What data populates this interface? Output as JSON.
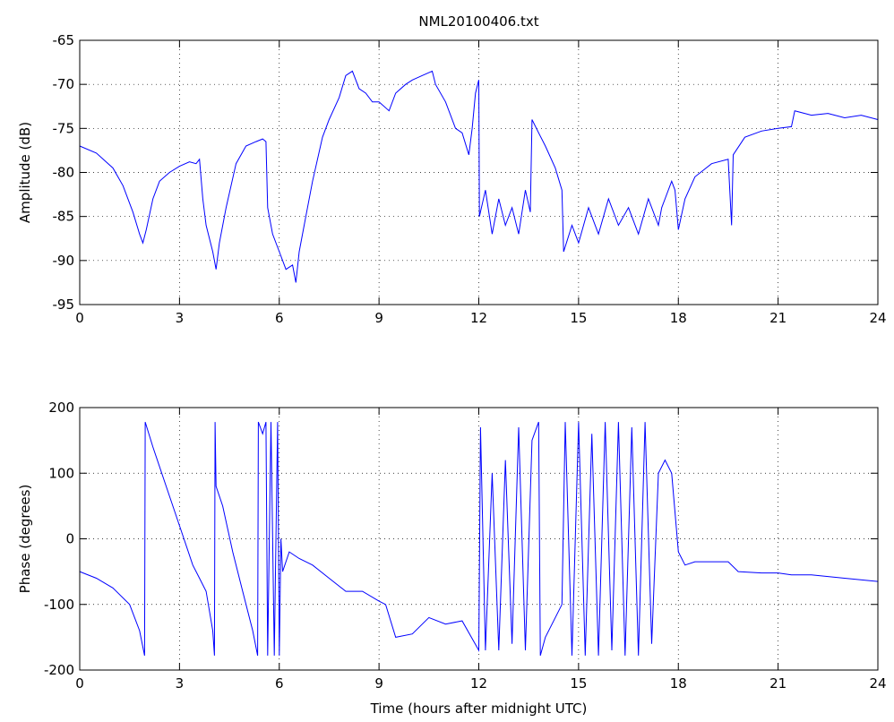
{
  "chart_data": [
    {
      "type": "line",
      "title": "NML20100406.txt",
      "y_label": "Amplitude (dB)",
      "color": "#0000ff",
      "grid": true,
      "xlim": [
        0,
        24
      ],
      "xticks": [
        0,
        3,
        6,
        9,
        12,
        15,
        18,
        21,
        24
      ],
      "ylim": [
        -95,
        -65
      ],
      "yticks": [
        -95,
        -90,
        -85,
        -80,
        -75,
        -70,
        -65
      ],
      "x": [
        0,
        0.5,
        1,
        1.3,
        1.6,
        1.8,
        1.9,
        2.0,
        2.2,
        2.4,
        2.7,
        3.0,
        3.3,
        3.5,
        3.6,
        3.7,
        3.8,
        4.0,
        4.1,
        4.2,
        4.4,
        4.7,
        5.0,
        5.3,
        5.5,
        5.6,
        5.65,
        5.8,
        6.0,
        6.2,
        6.4,
        6.5,
        6.6,
        6.8,
        7.0,
        7.3,
        7.5,
        7.8,
        8.0,
        8.2,
        8.4,
        8.6,
        8.8,
        9.0,
        9.3,
        9.5,
        9.8,
        10.0,
        10.3,
        10.6,
        10.7,
        11.0,
        11.3,
        11.5,
        11.7,
        11.8,
        11.9,
        12.0,
        12.02,
        12.2,
        12.4,
        12.6,
        12.8,
        13.0,
        13.2,
        13.4,
        13.55,
        13.6,
        13.8,
        14.0,
        14.3,
        14.5,
        14.55,
        14.8,
        15.0,
        15.3,
        15.6,
        15.9,
        16.2,
        16.5,
        16.8,
        17.1,
        17.4,
        17.5,
        17.6,
        17.8,
        17.9,
        18.0,
        18.2,
        18.5,
        19.0,
        19.5,
        19.6,
        19.65,
        20.0,
        20.5,
        21.0,
        21.4,
        21.5,
        22.0,
        22.5,
        23.0,
        23.5,
        24.0
      ],
      "values": [
        -77,
        -77.8,
        -79.5,
        -81.5,
        -84.5,
        -87,
        -88,
        -86.5,
        -83,
        -81,
        -80,
        -79.3,
        -78.8,
        -79,
        -78.5,
        -83,
        -86,
        -89,
        -91,
        -88,
        -84,
        -79,
        -77,
        -76.5,
        -76.2,
        -76.5,
        -84,
        -87,
        -89,
        -91,
        -90.5,
        -92.5,
        -89,
        -85,
        -81,
        -76,
        -74,
        -71.5,
        -69,
        -68.5,
        -70.5,
        -71,
        -72,
        -72,
        -73,
        -71,
        -70,
        -69.5,
        -69,
        -68.5,
        -70,
        -72,
        -75,
        -75.5,
        -78,
        -75,
        -71,
        -69.5,
        -85,
        -82,
        -87,
        -83,
        -86,
        -84,
        -87,
        -82,
        -84.5,
        -74,
        -75.5,
        -77,
        -79.5,
        -82,
        -89,
        -86,
        -88,
        -84,
        -87,
        -83,
        -86,
        -84,
        -87,
        -83,
        -86,
        -84,
        -83,
        -81,
        -82,
        -86.5,
        -83,
        -80.5,
        -79,
        -78.5,
        -86,
        -78,
        -76,
        -75.3,
        -75,
        -74.8,
        -73,
        -73.5,
        -73.3,
        -73.8,
        -73.5,
        -74
      ]
    },
    {
      "type": "line",
      "x_label": "Time (hours after midnight UTC)",
      "y_label": "Phase (degrees)",
      "color": "#0000ff",
      "grid": true,
      "xlim": [
        0,
        24
      ],
      "xticks": [
        0,
        3,
        6,
        9,
        12,
        15,
        18,
        21,
        24
      ],
      "ylim": [
        -200,
        200
      ],
      "yticks": [
        -200,
        -100,
        0,
        100,
        200
      ],
      "x": [
        0,
        0.5,
        1,
        1.5,
        1.8,
        1.95,
        1.97,
        2.2,
        2.6,
        3.0,
        3.4,
        3.6,
        3.8,
        4.0,
        4.05,
        4.07,
        4.1,
        4.3,
        4.6,
        4.9,
        5.2,
        5.35,
        5.37,
        5.5,
        5.6,
        5.65,
        5.75,
        5.85,
        5.95,
        6.0,
        6.05,
        6.1,
        6.3,
        6.6,
        7.0,
        7.5,
        8.0,
        8.5,
        9.0,
        9.2,
        9.5,
        10.0,
        10.5,
        11.0,
        11.5,
        12.0,
        12.05,
        12.2,
        12.4,
        12.6,
        12.8,
        13.0,
        13.2,
        13.4,
        13.6,
        13.8,
        13.85,
        14.0,
        14.5,
        14.6,
        14.8,
        15.0,
        15.2,
        15.4,
        15.6,
        15.8,
        16.0,
        16.2,
        16.4,
        16.6,
        16.8,
        17.0,
        17.2,
        17.4,
        17.6,
        17.8,
        18.0,
        18.2,
        18.5,
        19.0,
        19.5,
        19.8,
        20.5,
        21.0,
        21.4,
        22.0,
        23.0,
        24.0
      ],
      "values": [
        -50,
        -60,
        -75,
        -100,
        -140,
        -178,
        178,
        140,
        80,
        20,
        -40,
        -60,
        -80,
        -140,
        -178,
        178,
        80,
        50,
        -20,
        -80,
        -140,
        -178,
        178,
        160,
        178,
        -178,
        178,
        -178,
        178,
        -178,
        0,
        -50,
        -20,
        -30,
        -40,
        -60,
        -80,
        -80,
        -95,
        -100,
        -150,
        -145,
        -120,
        -130,
        -125,
        -170,
        170,
        -170,
        100,
        -170,
        120,
        -160,
        170,
        -170,
        150,
        178,
        -178,
        -150,
        -100,
        178,
        -178,
        178,
        -178,
        160,
        -178,
        178,
        -170,
        178,
        -178,
        170,
        -178,
        178,
        -160,
        100,
        120,
        100,
        -20,
        -40,
        -35,
        -35,
        -35,
        -50,
        -52,
        -52,
        -55,
        -55,
        -60,
        -65
      ]
    }
  ]
}
